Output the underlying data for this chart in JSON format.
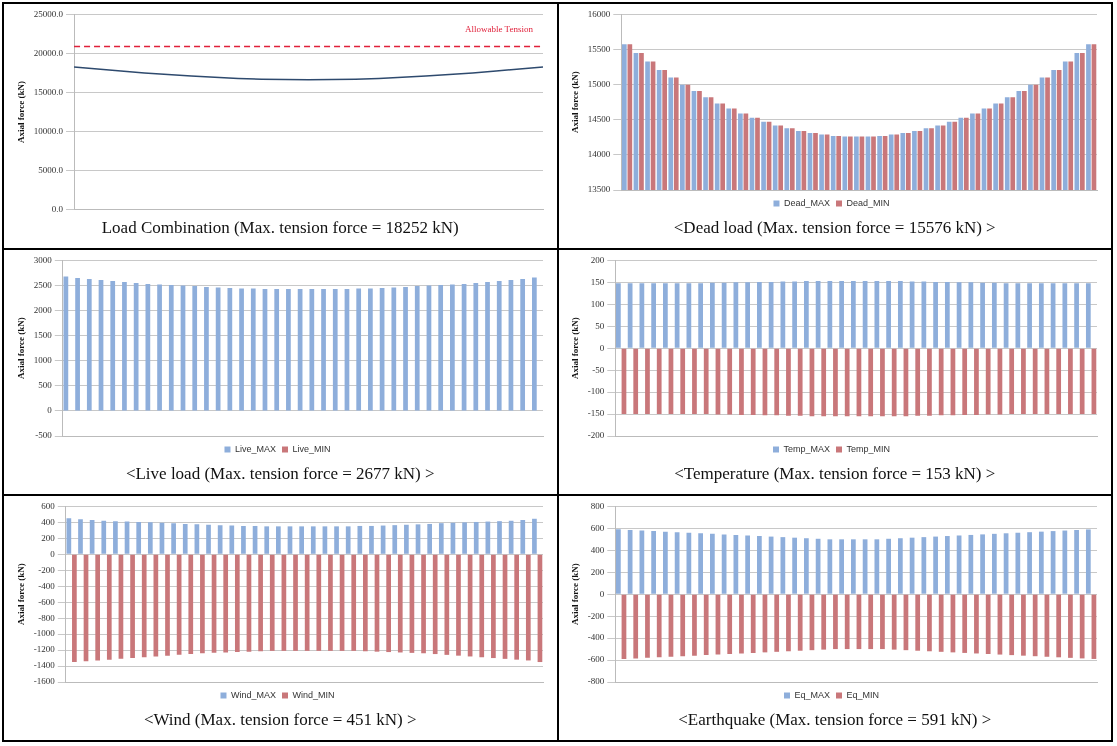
{
  "chart_data": [
    {
      "type": "line",
      "title": "Load Combination (Max. tension force = 18252 kN)",
      "ylabel": "Axial force (kN)",
      "categories": [
        null,
        null,
        null,
        null,
        null,
        null,
        null,
        null,
        null,
        null,
        null,
        null,
        null,
        null,
        null,
        null,
        null,
        null,
        null,
        null,
        null
      ],
      "series": [
        {
          "color": "#2e4a6e",
          "values": [
            18252,
            18000,
            17750,
            17500,
            17300,
            17100,
            16950,
            16800,
            16700,
            16650,
            16620,
            16650,
            16700,
            16800,
            16950,
            17100,
            17300,
            17500,
            17750,
            18000,
            18252
          ]
        }
      ],
      "ylim": [
        0,
        25000
      ],
      "yticks": [
        {
          "value": 0,
          "label": "0.0"
        },
        {
          "value": 5000,
          "label": "5000.0"
        },
        {
          "value": 10000,
          "label": "10000.0"
        },
        {
          "value": 15000,
          "label": "15000.0"
        },
        {
          "value": 20000,
          "label": "20000.0"
        },
        {
          "value": 25000,
          "label": "25000.0"
        }
      ],
      "ref_lines": [
        {
          "axis": "y",
          "value": 20900,
          "label": "Allowable Tension",
          "color": "#e0203a",
          "line_style": "dashed"
        }
      ],
      "grid": "y",
      "legend": false,
      "marker": "none",
      "tick_labels": "y"
    },
    {
      "type": "bar",
      "title": "<Dead load (Max. tension force = 15576 kN) >",
      "ylabel": "Axial force (kN)",
      "categories": [
        null,
        null,
        null,
        null,
        null,
        null,
        null,
        null,
        null,
        null,
        null,
        null,
        null,
        null,
        null,
        null,
        null,
        null,
        null,
        null,
        null,
        null,
        null,
        null,
        null,
        null,
        null,
        null,
        null,
        null,
        null,
        null,
        null,
        null,
        null,
        null,
        null,
        null,
        null,
        null,
        null
      ],
      "series": [
        {
          "name": "Dead_MAX",
          "color": "#8eaedb",
          "values": [
            15576,
            15450,
            15330,
            15210,
            15100,
            15000,
            14910,
            14820,
            14730,
            14660,
            14590,
            14530,
            14470,
            14420,
            14380,
            14340,
            14310,
            14290,
            14270,
            14260,
            14260,
            14260,
            14270,
            14290,
            14310,
            14340,
            14380,
            14420,
            14470,
            14530,
            14590,
            14660,
            14730,
            14820,
            14910,
            15000,
            15100,
            15210,
            15330,
            15450,
            15576
          ]
        },
        {
          "name": "Dead_MIN",
          "color": "#c9777a",
          "values": [
            15576,
            15450,
            15330,
            15210,
            15100,
            15000,
            14910,
            14820,
            14730,
            14660,
            14590,
            14530,
            14470,
            14420,
            14380,
            14340,
            14310,
            14290,
            14270,
            14260,
            14260,
            14260,
            14270,
            14290,
            14310,
            14340,
            14380,
            14420,
            14470,
            14530,
            14590,
            14660,
            14730,
            14820,
            14910,
            15000,
            15100,
            15210,
            15330,
            15450,
            15576
          ]
        }
      ],
      "ylim": [
        13500,
        16000
      ],
      "yticks": [
        13500,
        14000,
        14500,
        15000,
        15500,
        16000
      ],
      "grid": "y",
      "legend": "bottom",
      "tick_labels": "y"
    },
    {
      "type": "bar",
      "title": "<Live load (Max. tension force = 2677 kN) >",
      "ylabel": "Axial force (kN)",
      "categories": [
        null,
        null,
        null,
        null,
        null,
        null,
        null,
        null,
        null,
        null,
        null,
        null,
        null,
        null,
        null,
        null,
        null,
        null,
        null,
        null,
        null,
        null,
        null,
        null,
        null,
        null,
        null,
        null,
        null,
        null,
        null,
        null,
        null,
        null,
        null,
        null,
        null,
        null,
        null,
        null,
        null
      ],
      "series": [
        {
          "name": "Live_MAX",
          "color": "#8eaedb",
          "values": [
            2677,
            2650,
            2630,
            2610,
            2590,
            2570,
            2550,
            2530,
            2520,
            2510,
            2500,
            2490,
            2470,
            2460,
            2450,
            2440,
            2440,
            2430,
            2430,
            2430,
            2430,
            2430,
            2430,
            2430,
            2430,
            2440,
            2440,
            2450,
            2460,
            2470,
            2490,
            2500,
            2510,
            2520,
            2530,
            2550,
            2570,
            2590,
            2610,
            2630,
            2660
          ]
        },
        {
          "name": "Live_MIN",
          "color": "#c9777a",
          "values": [
            0,
            0,
            0,
            0,
            0,
            0,
            0,
            0,
            0,
            0,
            0,
            0,
            0,
            0,
            0,
            0,
            0,
            0,
            0,
            0,
            0,
            0,
            0,
            0,
            0,
            0,
            0,
            0,
            0,
            0,
            0,
            0,
            0,
            0,
            0,
            0,
            0,
            0,
            0,
            0,
            0
          ]
        }
      ],
      "ylim": [
        -500,
        3000
      ],
      "yticks": [
        -500,
        0,
        500,
        1000,
        1500,
        2000,
        2500,
        3000
      ],
      "grid": "y",
      "legend": "bottom",
      "tick_labels": "y"
    },
    {
      "type": "bar",
      "title": "<Temperature (Max. tension force = 153 kN) >",
      "ylabel": "Axial force (kN)",
      "categories": [
        null,
        null,
        null,
        null,
        null,
        null,
        null,
        null,
        null,
        null,
        null,
        null,
        null,
        null,
        null,
        null,
        null,
        null,
        null,
        null,
        null,
        null,
        null,
        null,
        null,
        null,
        null,
        null,
        null,
        null,
        null,
        null,
        null,
        null,
        null,
        null,
        null,
        null,
        null,
        null,
        null
      ],
      "series": [
        {
          "name": "Temp_MAX",
          "color": "#8eaedb",
          "values": [
            148,
            148,
            148,
            148,
            148,
            148,
            148,
            148,
            149,
            149,
            150,
            150,
            151,
            151,
            152,
            152,
            153,
            153,
            153,
            153,
            153,
            153,
            153,
            153,
            153,
            152,
            152,
            151,
            151,
            150,
            150,
            149,
            149,
            148,
            148,
            148,
            148,
            148,
            148,
            148,
            148
          ]
        },
        {
          "name": "Temp_MIN",
          "color": "#c9777a",
          "values": [
            -150,
            -150,
            -150,
            -150,
            -150,
            -150,
            -150,
            -150,
            -151,
            -151,
            -152,
            -152,
            -153,
            -153,
            -154,
            -154,
            -155,
            -155,
            -155,
            -155,
            -155,
            -155,
            -155,
            -155,
            -155,
            -154,
            -154,
            -153,
            -153,
            -152,
            -152,
            -151,
            -151,
            -150,
            -150,
            -150,
            -150,
            -150,
            -150,
            -150,
            -150
          ]
        }
      ],
      "ylim": [
        -200,
        200
      ],
      "yticks": [
        -200,
        -150,
        -100,
        -50,
        0,
        50,
        100,
        150,
        200
      ],
      "grid": "y",
      "legend": "bottom",
      "tick_labels": "y"
    },
    {
      "type": "bar",
      "title": "<Wind (Max. tension force = 451 kN) >",
      "ylabel": "Axial force (kN)",
      "categories": [
        null,
        null,
        null,
        null,
        null,
        null,
        null,
        null,
        null,
        null,
        null,
        null,
        null,
        null,
        null,
        null,
        null,
        null,
        null,
        null,
        null,
        null,
        null,
        null,
        null,
        null,
        null,
        null,
        null,
        null,
        null,
        null,
        null,
        null,
        null,
        null,
        null,
        null,
        null,
        null,
        null
      ],
      "series": [
        {
          "name": "Wind_MAX",
          "color": "#8eaedb",
          "values": [
            451,
            440,
            430,
            420,
            415,
            410,
            405,
            400,
            395,
            390,
            380,
            375,
            370,
            365,
            360,
            355,
            355,
            350,
            350,
            350,
            350,
            350,
            350,
            350,
            350,
            355,
            355,
            360,
            365,
            370,
            375,
            380,
            390,
            395,
            400,
            405,
            410,
            415,
            420,
            430,
            445
          ]
        },
        {
          "name": "Wind_MIN",
          "color": "#c9777a",
          "values": [
            -1350,
            -1340,
            -1330,
            -1320,
            -1310,
            -1300,
            -1290,
            -1280,
            -1270,
            -1260,
            -1250,
            -1240,
            -1235,
            -1230,
            -1225,
            -1220,
            -1215,
            -1210,
            -1210,
            -1210,
            -1210,
            -1210,
            -1210,
            -1210,
            -1210,
            -1215,
            -1220,
            -1225,
            -1230,
            -1235,
            -1240,
            -1250,
            -1260,
            -1270,
            -1280,
            -1290,
            -1300,
            -1310,
            -1320,
            -1330,
            -1350
          ]
        }
      ],
      "ylim": [
        -1600,
        600
      ],
      "yticks": [
        -1600,
        -1400,
        -1200,
        -1000,
        -800,
        -600,
        -400,
        -200,
        0,
        200,
        400,
        600
      ],
      "grid": "y",
      "legend": "bottom",
      "tick_labels": "y"
    },
    {
      "type": "bar",
      "title": "<Earthquake (Max. tension force = 591 kN) >",
      "ylabel": "Axial force (kN)",
      "categories": [
        null,
        null,
        null,
        null,
        null,
        null,
        null,
        null,
        null,
        null,
        null,
        null,
        null,
        null,
        null,
        null,
        null,
        null,
        null,
        null,
        null,
        null,
        null,
        null,
        null,
        null,
        null,
        null,
        null,
        null,
        null,
        null,
        null,
        null,
        null,
        null,
        null,
        null,
        null,
        null,
        null
      ],
      "series": [
        {
          "name": "Eq_MAX",
          "color": "#8eaedb",
          "values": [
            591,
            585,
            580,
            575,
            570,
            565,
            560,
            555,
            550,
            545,
            540,
            535,
            530,
            525,
            520,
            515,
            510,
            505,
            500,
            500,
            500,
            500,
            500,
            505,
            510,
            515,
            520,
            525,
            530,
            535,
            540,
            545,
            550,
            555,
            560,
            565,
            570,
            575,
            580,
            585,
            590
          ]
        },
        {
          "name": "Eq_MIN",
          "color": "#c9777a",
          "values": [
            -590,
            -585,
            -580,
            -575,
            -570,
            -565,
            -560,
            -555,
            -550,
            -545,
            -540,
            -535,
            -530,
            -525,
            -520,
            -515,
            -510,
            -505,
            -500,
            -500,
            -500,
            -500,
            -500,
            -505,
            -510,
            -515,
            -520,
            -525,
            -530,
            -535,
            -540,
            -545,
            -550,
            -555,
            -560,
            -565,
            -570,
            -575,
            -580,
            -585,
            -590
          ]
        }
      ],
      "ylim": [
        -800,
        800
      ],
      "yticks": [
        -800,
        -600,
        -400,
        -200,
        0,
        200,
        400,
        600,
        800
      ],
      "grid": "y",
      "legend": "bottom",
      "tick_labels": "y"
    }
  ]
}
